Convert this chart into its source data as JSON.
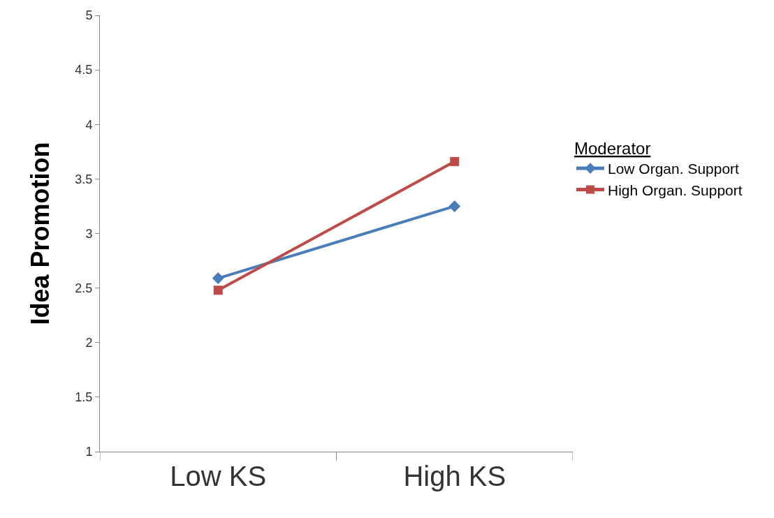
{
  "chart_data": {
    "type": "line",
    "ylabel": "Idea Promotion",
    "legend_title": "Moderator",
    "categories": [
      "Low KS",
      "High KS"
    ],
    "series": [
      {
        "name": "Low Organ. Support",
        "color": "#4a7ebb",
        "marker": "diamond",
        "values": [
          2.59,
          3.25
        ]
      },
      {
        "name": "High Organ. Support",
        "color": "#be4b48",
        "marker": "square",
        "values": [
          2.48,
          3.66
        ]
      }
    ],
    "ylim": [
      1,
      5
    ],
    "yticks": [
      1,
      1.5,
      2,
      2.5,
      3,
      3.5,
      4,
      4.5,
      5
    ],
    "legend": "right",
    "line_style": "solid"
  }
}
